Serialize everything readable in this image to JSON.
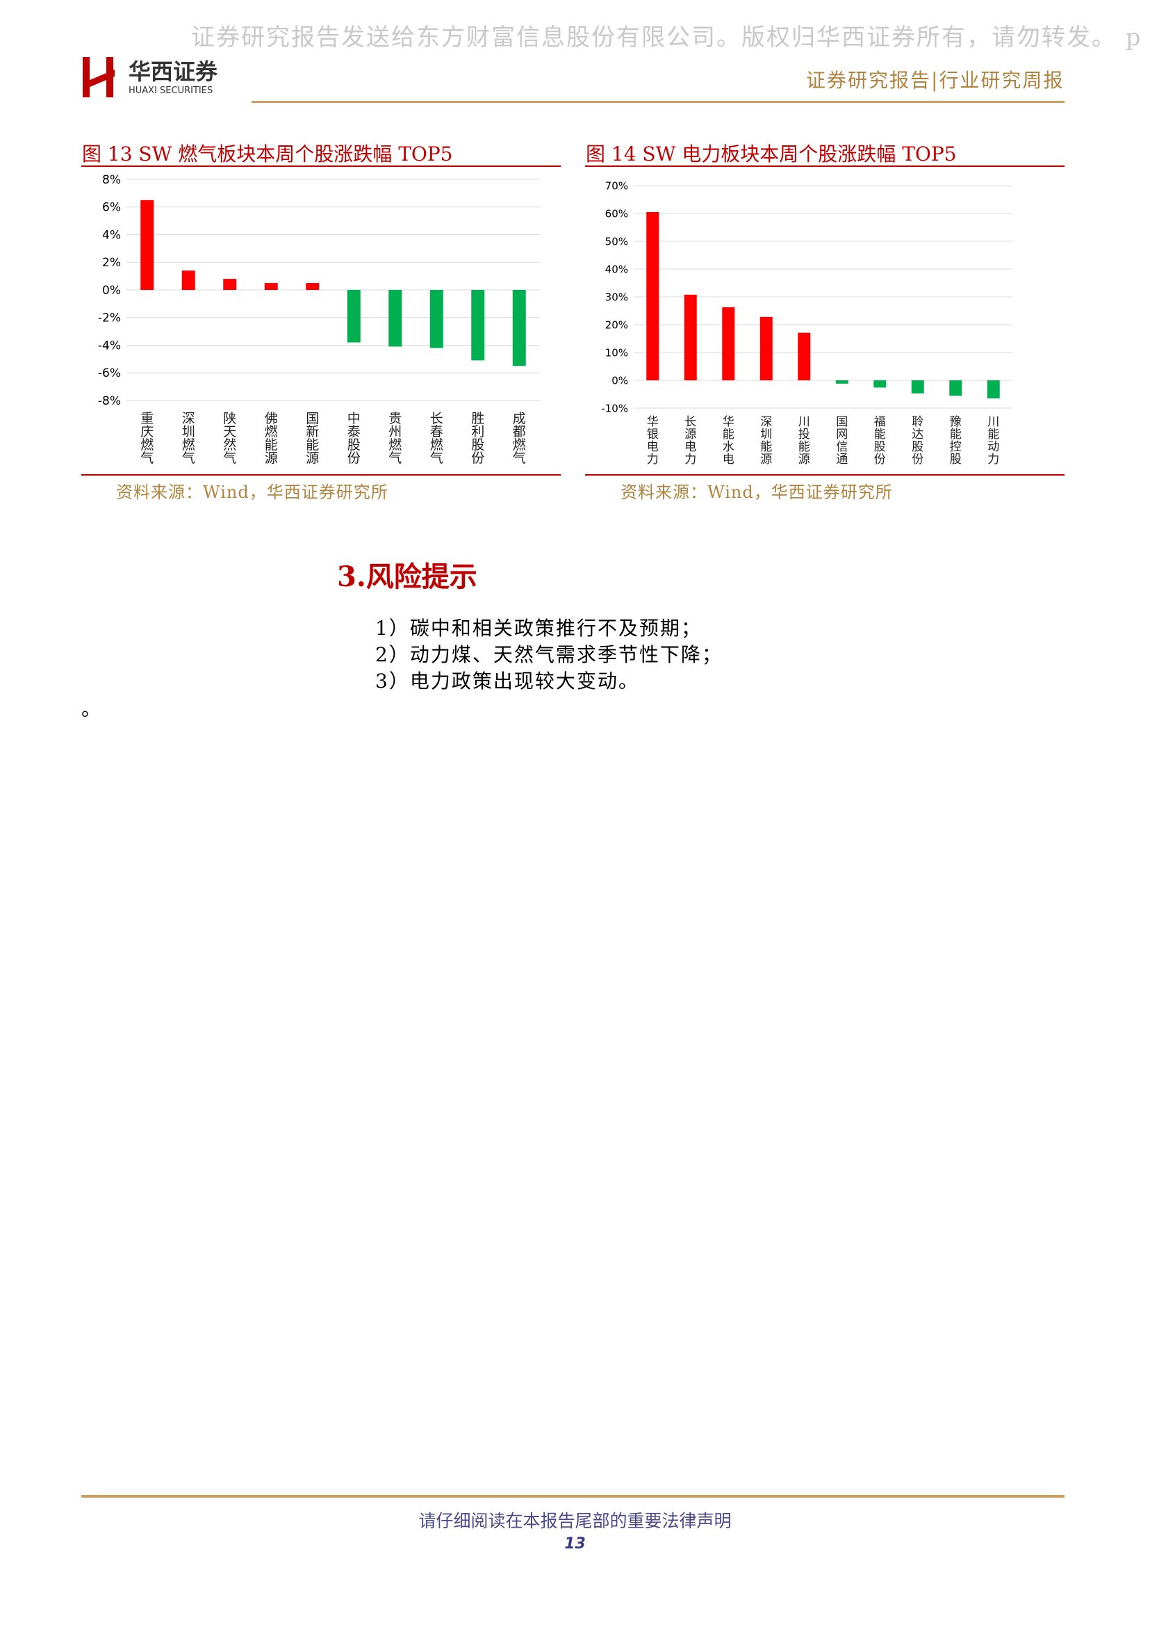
{
  "watermark": "证券研究报告发送给东方财富信息股份有限公司。版权归华西证券所有，请勿转发。 p",
  "logo": {
    "name_cn": "华西证券",
    "name_en": "HUAXI SECURITIES",
    "mark": "H",
    "colors": {
      "mark": "#c00000",
      "text": "#333333"
    }
  },
  "header": {
    "label": "证券研究报告|行业研究周报"
  },
  "figures": [
    {
      "title": "图 13 SW 燃气板块本周个股涨跌幅 TOP5",
      "source": "资料来源：Wind，华西证券研究所"
    },
    {
      "title": "图 14 SW 电力板块本周个股涨跌幅 TOP5",
      "source": "资料来源：Wind，华西证券研究所"
    }
  ],
  "chart_data": [
    {
      "type": "bar",
      "title": "图 13 SW 燃气板块本周个股涨跌幅 TOP5",
      "categories": [
        "重庆燃气",
        "深圳燃气",
        "陕天然气",
        "佛燃能源",
        "国新能源",
        "中泰股份",
        "贵州燃气",
        "长春燃气",
        "胜利股份",
        "成都燃气"
      ],
      "values": [
        6.5,
        1.4,
        0.8,
        0.5,
        0.5,
        -3.8,
        -4.1,
        -4.2,
        -5.1,
        -5.5
      ],
      "unit": "%",
      "ylim": [
        -8,
        8
      ],
      "yticks": [
        "8%",
        "6%",
        "4%",
        "2%",
        "0%",
        "-2%",
        "-4%",
        "-6%",
        "-8%"
      ],
      "ytick_values": [
        8,
        6,
        4,
        2,
        0,
        -2,
        -4,
        -6,
        -8
      ],
      "grid": true,
      "colors": {
        "positive": "#ff0000",
        "negative": "#00b050",
        "grid": "#d9d9d9"
      }
    },
    {
      "type": "bar",
      "title": "图 14 SW 电力板块本周个股涨跌幅 TOP5",
      "categories": [
        "华银电力",
        "长源电力",
        "华能水电",
        "深圳能源",
        "川投能源",
        "国网信通",
        "福能股份",
        "聆达股份",
        "豫能控股",
        "川能动力"
      ],
      "values": [
        60.5,
        30.8,
        26.3,
        22.8,
        17.1,
        -1.2,
        -2.6,
        -4.7,
        -5.5,
        -6.5
      ],
      "unit": "%",
      "ylim": [
        -10,
        70
      ],
      "yticks": [
        "70%",
        "60%",
        "50%",
        "40%",
        "30%",
        "20%",
        "10%",
        "0%",
        "-10%"
      ],
      "ytick_values": [
        70,
        60,
        50,
        40,
        30,
        20,
        10,
        0,
        -10
      ],
      "grid": true,
      "colors": {
        "positive": "#ff0000",
        "negative": "#00b050",
        "grid": "#d9d9d9"
      }
    }
  ],
  "risk": {
    "heading": "3.风险提示",
    "items": [
      "1）碳中和相关政策推行不及预期；",
      "2）动力煤、天然气需求季节性下降；",
      "3）电力政策出现较大变动。"
    ],
    "trailing_mark": "。"
  },
  "footer": {
    "note": "请仔细阅读在本报告尾部的重要法律声明",
    "page": "13"
  }
}
